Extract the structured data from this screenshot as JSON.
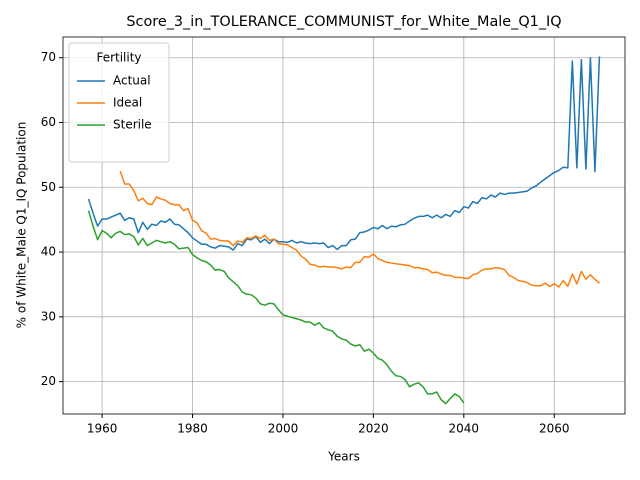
{
  "chart_data": {
    "type": "line",
    "title": "Score_3_in_TOLERANCE_COMMUNIST_for_White_Male_Q1_IQ",
    "xlabel": "Years",
    "ylabel": "% of White_Male Q1_IQ Population",
    "legend_title": "Fertility",
    "legend": "upper left",
    "grid": true,
    "xlim": [
      1951.35,
      2075.65
    ],
    "ylim": [
      15.0,
      73.2
    ],
    "xticks": [
      1960,
      1980,
      2000,
      2020,
      2040,
      2060
    ],
    "yticks": [
      20,
      30,
      40,
      50,
      60,
      70
    ],
    "x": [
      1957,
      1958,
      1959,
      1960,
      1961,
      1962,
      1963,
      1964,
      1965,
      1966,
      1967,
      1968,
      1969,
      1970,
      1971,
      1972,
      1973,
      1974,
      1975,
      1976,
      1977,
      1978,
      1979,
      1980,
      1981,
      1982,
      1983,
      1984,
      1985,
      1986,
      1987,
      1988,
      1989,
      1990,
      1991,
      1992,
      1993,
      1994,
      1995,
      1996,
      1997,
      1998,
      1999,
      2000,
      2001,
      2002,
      2003,
      2004,
      2005,
      2006,
      2007,
      2008,
      2009,
      2010,
      2011,
      2012,
      2013,
      2014,
      2015,
      2016,
      2017,
      2018,
      2019,
      2020,
      2021,
      2022,
      2023,
      2024,
      2025,
      2026,
      2027,
      2028,
      2029,
      2030,
      2031,
      2032,
      2033,
      2034,
      2035,
      2036,
      2037,
      2038,
      2039,
      2040,
      2041,
      2042,
      2043,
      2044,
      2045,
      2046,
      2047,
      2048,
      2049,
      2050,
      2051,
      2052,
      2053,
      2054,
      2055,
      2056,
      2057,
      2058,
      2059,
      2060,
      2061,
      2062,
      2063,
      2064,
      2065,
      2066,
      2067,
      2068,
      2069,
      2070
    ],
    "series": [
      {
        "name": "Actual",
        "color": "#1f77b4",
        "values": [
          48.2,
          46,
          44,
          45.1,
          45.1,
          45.4,
          45.7,
          46,
          44.9,
          45.3,
          45.1,
          43,
          44.6,
          43.5,
          44.3,
          44.1,
          44.8,
          44.6,
          45.1,
          44.3,
          44.2,
          43.6,
          43,
          42.2,
          41.7,
          41.2,
          41.2,
          40.8,
          40.6,
          41,
          40.9,
          40.8,
          40.3,
          41.3,
          41,
          42,
          41.9,
          42.4,
          41.5,
          42,
          41.3,
          42,
          41.6,
          41.6,
          41.5,
          41.8,
          41.4,
          41.6,
          41.4,
          41.3,
          41.4,
          41.3,
          41.4,
          40.7,
          41,
          40.4,
          41,
          41,
          41.9,
          42,
          43,
          43.1,
          43.4,
          43.8,
          43.6,
          44.1,
          43.6,
          44,
          43.9,
          44.2,
          44.3,
          44.8,
          45.2,
          45.5,
          45.5,
          45.7,
          45.3,
          45.7,
          45.3,
          45.8,
          45.5,
          46.4,
          46.1,
          47,
          46.8,
          47.8,
          47.5,
          48.4,
          48.2,
          48.8,
          48.5,
          49.1,
          48.9,
          49.1,
          49.1,
          49.2,
          49.3,
          49.4,
          49.9,
          50.2,
          50.8,
          51.3,
          51.8,
          52.3,
          52.6,
          53.1,
          53,
          69.5,
          53,
          69.7,
          52.8,
          70,
          52.4,
          70.2
        ]
      },
      {
        "name": "Ideal",
        "color": "#ff7f0e",
        "values": [
          null,
          null,
          null,
          null,
          null,
          null,
          null,
          52.5,
          50.5,
          50.5,
          49.5,
          47.9,
          48.3,
          47.5,
          47.3,
          48.5,
          48.2,
          48,
          47.5,
          47.3,
          47.3,
          46.4,
          46.7,
          44.9,
          44.5,
          43.3,
          42.9,
          42,
          42.1,
          41.8,
          41.7,
          41.7,
          41,
          41.7,
          41.5,
          42.2,
          42.1,
          42.5,
          42.1,
          42.6,
          41.8,
          42,
          41.3,
          41.2,
          41.1,
          40.7,
          40.3,
          39.4,
          38.9,
          38.1,
          38,
          37.7,
          37.8,
          37.7,
          37.7,
          37.6,
          37.4,
          37.7,
          37.6,
          38.4,
          38.4,
          39.3,
          39.2,
          39.7,
          39,
          38.7,
          38.4,
          38.3,
          38.2,
          38.1,
          38,
          37.9,
          37.6,
          37.6,
          37.4,
          37.3,
          36.8,
          36.9,
          36.6,
          36.4,
          36.4,
          36.1,
          36.1,
          36,
          35.9,
          36.5,
          36.7,
          37.2,
          37.4,
          37.4,
          37.6,
          37.5,
          37.3,
          36.4,
          36.1,
          35.6,
          35.5,
          35.3,
          34.9,
          34.8,
          34.8,
          35.2,
          34.7,
          35.1,
          34.6,
          35.6,
          34.7,
          36.6,
          35.1,
          37,
          35.8,
          36.5,
          35.8,
          35.2
        ]
      },
      {
        "name": "Sterile",
        "color": "#2ca02c",
        "values": [
          46.4,
          44,
          41.9,
          43.3,
          42.9,
          42.2,
          42.9,
          43.2,
          42.7,
          42.8,
          42.4,
          41.1,
          42.1,
          41,
          41.4,
          41.8,
          41.6,
          41.4,
          41.6,
          41.2,
          40.5,
          40.6,
          40.7,
          39.6,
          39.1,
          38.7,
          38.5,
          38,
          37.2,
          37.3,
          37,
          36,
          35.4,
          34.8,
          33.8,
          33.5,
          33.4,
          32.9,
          32,
          31.8,
          32.1,
          32,
          31.1,
          30.3,
          30.1,
          29.9,
          29.7,
          29.5,
          29.2,
          29.2,
          28.7,
          29.1,
          28.3,
          28,
          27.8,
          27,
          26.6,
          26.4,
          25.8,
          25.5,
          25.7,
          24.7,
          25,
          24.4,
          23.6,
          23.3,
          22.6,
          21.6,
          20.9,
          20.8,
          20.3,
          19.2,
          19.6,
          19.8,
          19.2,
          18.1,
          18.1,
          18.4,
          17.2,
          16.6,
          17.4,
          18.1,
          17.7,
          16.7,
          null,
          null,
          null,
          null,
          null,
          null,
          null,
          null,
          null,
          null,
          null,
          null,
          null,
          null,
          null,
          null,
          null,
          null,
          null,
          null,
          null,
          null,
          null,
          null,
          null,
          null,
          null,
          null,
          null,
          null
        ]
      }
    ]
  }
}
